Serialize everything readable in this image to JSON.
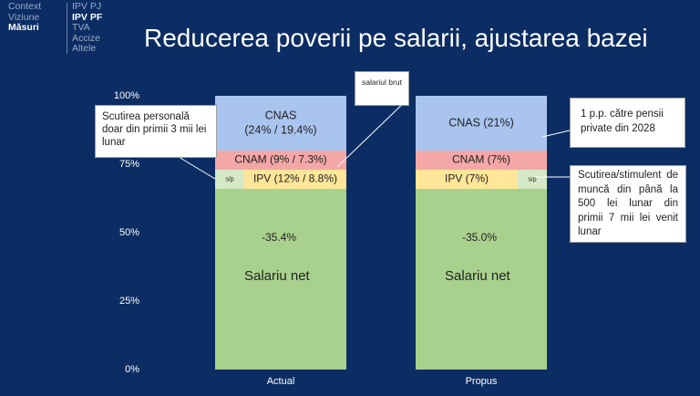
{
  "nav": {
    "left_items": [
      {
        "label": "Context",
        "active": false
      },
      {
        "label": "Viziune",
        "active": false
      },
      {
        "label": "Măsuri",
        "active": true
      }
    ],
    "right_items": [
      {
        "label": "IPV PJ",
        "active": false
      },
      {
        "label": "IPV PF",
        "active": true
      },
      {
        "label": "TVA",
        "active": false
      },
      {
        "label": "Accize",
        "active": false
      },
      {
        "label": "Altele",
        "active": false
      }
    ]
  },
  "slide_title": "Reducerea poverii pe salarii, ajustarea bazei",
  "chart_data": {
    "type": "bar",
    "stacked": true,
    "y_unit": "percent",
    "ylim": [
      0,
      100
    ],
    "y_ticks": [
      "0%",
      "25%",
      "50%",
      "75%",
      "100%"
    ],
    "grid": false,
    "categories": [
      "Actual",
      "Propus"
    ],
    "bars": [
      {
        "category": "Actual",
        "segments": [
          {
            "key": "salariu_net",
            "name": "Salariu net",
            "pct_label": "-35.4%",
            "from": 0,
            "to": 66,
            "color": "#a9d18e"
          },
          {
            "key": "sp",
            "name": "",
            "label": "s/p",
            "from": 66,
            "to": 73,
            "color": "#d6e9c6"
          },
          {
            "key": "ipv",
            "label": "IPV (12% / 8.8%)",
            "from": 66,
            "to": 73,
            "color": "#ffe699"
          },
          {
            "key": "cnam",
            "label": "CNAM (9% / 7.3%)",
            "from": 73,
            "to": 80,
            "color": "#f4a7a7"
          },
          {
            "key": "cnas",
            "label_line1": "CNAS",
            "label_line2": "(24% / 19.4%)",
            "from": 80,
            "to": 100,
            "color": "#a9c4ee"
          }
        ]
      },
      {
        "category": "Propus",
        "segments": [
          {
            "key": "salariu_net",
            "name": "Salariu net",
            "pct_label": "-35.0%",
            "from": 0,
            "to": 66,
            "color": "#a9d18e"
          },
          {
            "key": "ipv",
            "label": "IPV (7%)",
            "from": 66,
            "to": 73,
            "color": "#ffe699"
          },
          {
            "key": "sp",
            "name": "",
            "label": "s/p",
            "from": 66,
            "to": 73,
            "color": "#d6e9c6"
          },
          {
            "key": "cnam",
            "label": "CNAM (7%)",
            "from": 73,
            "to": 80,
            "color": "#f4a7a7"
          },
          {
            "key": "cnas",
            "label_line1": "CNAS (21%)",
            "label_line2": "",
            "from": 80,
            "to": 100,
            "color": "#a9c4ee"
          }
        ]
      }
    ],
    "annotations": [
      {
        "key": "scutirea_personala",
        "text": "Scutirea personală doar din primii 3 mii lei lunar"
      },
      {
        "key": "salariul_brut",
        "text": "salariul brut"
      },
      {
        "key": "pensii_private",
        "text": "1 p.p. către pensii private din 2028"
      },
      {
        "key": "scutirea_stimulent",
        "text": "Scutirea/stimulent de muncă din până la 500 lei lunar din primii 7 mii lei venit lunar"
      }
    ]
  }
}
